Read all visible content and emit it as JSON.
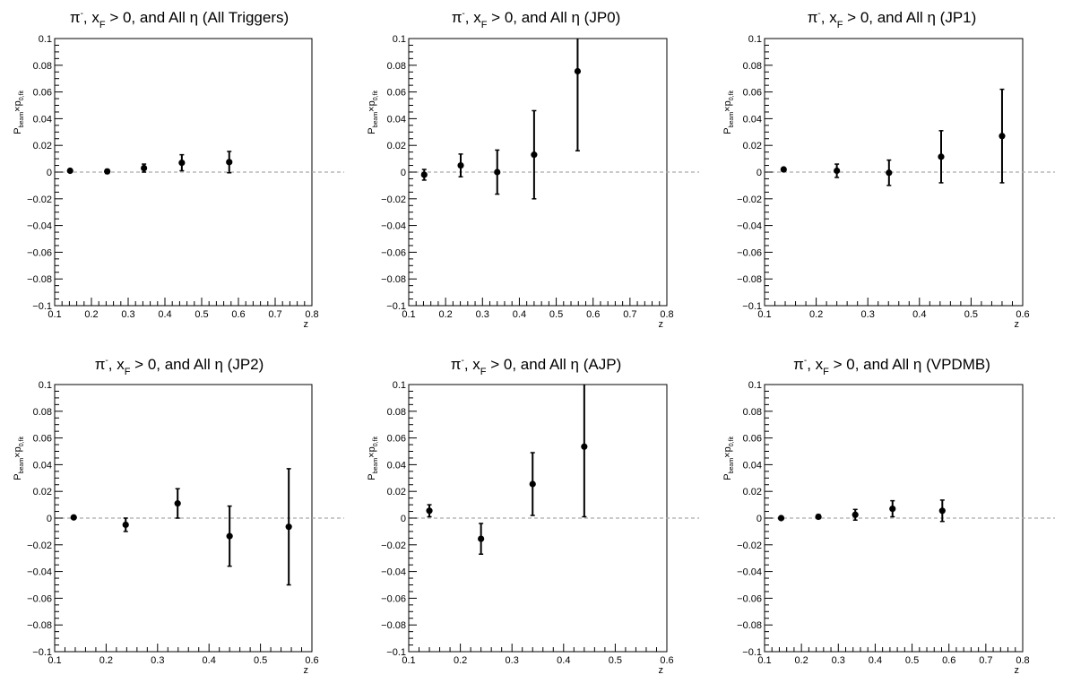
{
  "chart_data": [
    {
      "type": "scatter",
      "title": {
        "p1": "π",
        "sup": "-",
        "p2": ", x",
        "sub": "F",
        "p3": " > 0, and All η (All Triggers)"
      },
      "xlabel": "z",
      "ylabel": {
        "base": "P",
        "sub1": "beam",
        "mid": "×p",
        "sub2": "0,fit"
      },
      "xlim": [
        0.1,
        0.8
      ],
      "ylim": [
        -0.1,
        0.1
      ],
      "xticks": [
        "0.1",
        "0.2",
        "0.3",
        "0.4",
        "0.5",
        "0.6",
        "0.7",
        "0.8"
      ],
      "yticks": [
        "0.1",
        "0.08",
        "0.06",
        "0.04",
        "0.02",
        "0",
        "−0.02",
        "−0.04",
        "−0.06",
        "−0.08",
        "−0.1"
      ],
      "zero_line": true,
      "points": [
        {
          "x": 0.142,
          "y": 0.001,
          "err": 0.001
        },
        {
          "x": 0.243,
          "y": 0.0005,
          "err": 0.0015
        },
        {
          "x": 0.343,
          "y": 0.003,
          "err": 0.003
        },
        {
          "x": 0.446,
          "y": 0.007,
          "err": 0.006
        },
        {
          "x": 0.575,
          "y": 0.0075,
          "err": 0.008
        }
      ]
    },
    {
      "type": "scatter",
      "title": {
        "p1": "π",
        "sup": "-",
        "p2": ", x",
        "sub": "F",
        "p3": " > 0, and All η (JP0)"
      },
      "xlabel": "z",
      "ylabel": {
        "base": "P",
        "sub1": "beam",
        "mid": "×p",
        "sub2": "0,fit"
      },
      "xlim": [
        0.1,
        0.8
      ],
      "ylim": [
        -0.1,
        0.1
      ],
      "xticks": [
        "0.1",
        "0.2",
        "0.3",
        "0.4",
        "0.5",
        "0.6",
        "0.7",
        "0.8"
      ],
      "yticks": [
        "0.1",
        "0.08",
        "0.06",
        "0.04",
        "0.02",
        "0",
        "−0.02",
        "−0.04",
        "−0.06",
        "−0.08",
        "−0.1"
      ],
      "zero_line": true,
      "points": [
        {
          "x": 0.142,
          "y": -0.002,
          "err": 0.004
        },
        {
          "x": 0.241,
          "y": 0.005,
          "err": 0.0085
        },
        {
          "x": 0.34,
          "y": 0.0,
          "err": 0.0165
        },
        {
          "x": 0.44,
          "y": 0.013,
          "err": 0.033
        },
        {
          "x": 0.558,
          "y": 0.0755,
          "err": 0.0595
        }
      ]
    },
    {
      "type": "scatter",
      "title": {
        "p1": "π",
        "sup": "-",
        "p2": ", x",
        "sub": "F",
        "p3": " > 0, and All η (JP1)"
      },
      "xlabel": "z",
      "ylabel": {
        "base": "P",
        "sub1": "beam",
        "mid": "×p",
        "sub2": "0,fit"
      },
      "xlim": [
        0.1,
        0.6
      ],
      "ylim": [
        -0.1,
        0.1
      ],
      "xticks": [
        "0.1",
        "0.2",
        "0.3",
        "0.4",
        "0.5",
        "0.6"
      ],
      "yticks": [
        "0.1",
        "0.08",
        "0.06",
        "0.04",
        "0.02",
        "0",
        "−0.02",
        "−0.04",
        "−0.06",
        "−0.08",
        "−0.1"
      ],
      "zero_line": true,
      "points": [
        {
          "x": 0.137,
          "y": 0.002,
          "err": 0.001
        },
        {
          "x": 0.24,
          "y": 0.001,
          "err": 0.005
        },
        {
          "x": 0.341,
          "y": -0.0005,
          "err": 0.0095
        },
        {
          "x": 0.442,
          "y": 0.0115,
          "err": 0.0195
        },
        {
          "x": 0.56,
          "y": 0.027,
          "err": 0.035
        }
      ]
    },
    {
      "type": "scatter",
      "title": {
        "p1": "π",
        "sup": "-",
        "p2": ", x",
        "sub": "F",
        "p3": " > 0, and All η (JP2)"
      },
      "xlabel": "z",
      "ylabel": {
        "base": "P",
        "sub1": "beam",
        "mid": "×p",
        "sub2": "0,fit"
      },
      "xlim": [
        0.1,
        0.6
      ],
      "ylim": [
        -0.1,
        0.1
      ],
      "xticks": [
        "0.1",
        "0.2",
        "0.3",
        "0.4",
        "0.5",
        "0.6"
      ],
      "yticks": [
        "0.1",
        "0.08",
        "0.06",
        "0.04",
        "0.02",
        "0",
        "−0.02",
        "−0.04",
        "−0.06",
        "−0.08",
        "−0.1"
      ],
      "zero_line": true,
      "points": [
        {
          "x": 0.137,
          "y": 0.0005,
          "err": 0.001
        },
        {
          "x": 0.238,
          "y": -0.005,
          "err": 0.005
        },
        {
          "x": 0.339,
          "y": 0.011,
          "err": 0.011
        },
        {
          "x": 0.44,
          "y": -0.0135,
          "err": 0.0225
        },
        {
          "x": 0.555,
          "y": -0.0065,
          "err": 0.0435
        }
      ]
    },
    {
      "type": "scatter",
      "title": {
        "p1": "π",
        "sup": "-",
        "p2": ", x",
        "sub": "F",
        "p3": " > 0, and All η (AJP)"
      },
      "xlabel": "z",
      "ylabel": {
        "base": "P",
        "sub1": "beam",
        "mid": "×p",
        "sub2": "0,fit"
      },
      "xlim": [
        0.1,
        0.6
      ],
      "ylim": [
        -0.1,
        0.1
      ],
      "xticks": [
        "0.1",
        "0.2",
        "0.3",
        "0.4",
        "0.5",
        "0.6"
      ],
      "yticks": [
        "0.1",
        "0.08",
        "0.06",
        "0.04",
        "0.02",
        "0",
        "−0.02",
        "−0.04",
        "−0.06",
        "−0.08",
        "−0.1"
      ],
      "zero_line": true,
      "points": [
        {
          "x": 0.14,
          "y": 0.0055,
          "err": 0.0045
        },
        {
          "x": 0.24,
          "y": -0.0155,
          "err": 0.0115
        },
        {
          "x": 0.34,
          "y": 0.0255,
          "err": 0.0235
        },
        {
          "x": 0.44,
          "y": 0.0535,
          "err": 0.0525
        }
      ]
    },
    {
      "type": "scatter",
      "title": {
        "p1": "π",
        "sup": "-",
        "p2": ", x",
        "sub": "F",
        "p3": " > 0, and All η (VPDMB)"
      },
      "xlabel": "z",
      "ylabel": {
        "base": "P",
        "sub1": "beam",
        "mid": "×p",
        "sub2": "0,fit"
      },
      "xlim": [
        0.1,
        0.8
      ],
      "ylim": [
        -0.1,
        0.1
      ],
      "xticks": [
        "0.1",
        "0.2",
        "0.3",
        "0.4",
        "0.5",
        "0.6",
        "0.7",
        "0.8"
      ],
      "yticks": [
        "0.1",
        "0.08",
        "0.06",
        "0.04",
        "0.02",
        "0",
        "−0.02",
        "−0.04",
        "−0.06",
        "−0.08",
        "−0.1"
      ],
      "zero_line": true,
      "points": [
        {
          "x": 0.145,
          "y": 0.0,
          "err": 0.001
        },
        {
          "x": 0.246,
          "y": 0.001,
          "err": 0.0015
        },
        {
          "x": 0.346,
          "y": 0.0025,
          "err": 0.004
        },
        {
          "x": 0.447,
          "y": 0.007,
          "err": 0.006
        },
        {
          "x": 0.582,
          "y": 0.0055,
          "err": 0.008
        }
      ]
    }
  ]
}
